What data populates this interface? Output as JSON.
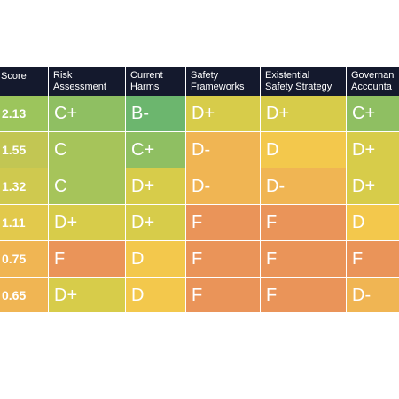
{
  "colors": {
    "header_bg": "#14192d",
    "grade_b_minus": "#6cb66e",
    "grade_c_plus": "#8fbf62",
    "grade_c": "#a6c45a",
    "grade_d_plus": "#d7cc4a",
    "grade_d": "#f3c84c",
    "grade_d_minus": "#f0b553",
    "grade_f": "#ea9459",
    "score_high": "#a6c45a",
    "score_mid": "#c0c855",
    "score_low": "#f0b553",
    "text": "#ffffff"
  },
  "table": {
    "headers": [
      [
        "Score"
      ],
      [
        "Risk",
        "Assessment"
      ],
      [
        "Current",
        "Harms"
      ],
      [
        "Safety",
        "Frameworks"
      ],
      [
        "Existential",
        "Safety Strategy"
      ],
      [
        "Governan",
        "Accounta"
      ]
    ],
    "rows": [
      {
        "score": "2.13",
        "score_color": "#9cc55c",
        "grades": [
          {
            "g": "C+",
            "color": "#8fbf62"
          },
          {
            "g": "B-",
            "color": "#6cb66e"
          },
          {
            "g": "D+",
            "color": "#d7cc4a"
          },
          {
            "g": "D+",
            "color": "#d7cc4a"
          },
          {
            "g": "C+",
            "color": "#8fbf62"
          }
        ]
      },
      {
        "score": "1.55",
        "score_color": "#c2c653",
        "grades": [
          {
            "g": "C",
            "color": "#a6c45a"
          },
          {
            "g": "C+",
            "color": "#8fbf62"
          },
          {
            "g": "D-",
            "color": "#f0b553"
          },
          {
            "g": "D",
            "color": "#f3c84c"
          },
          {
            "g": "D+",
            "color": "#d7cc4a"
          }
        ]
      },
      {
        "score": "1.32",
        "score_color": "#cfc94f",
        "grades": [
          {
            "g": "C",
            "color": "#a6c45a"
          },
          {
            "g": "D+",
            "color": "#d7cc4a"
          },
          {
            "g": "D-",
            "color": "#f0b553"
          },
          {
            "g": "D-",
            "color": "#f0b553"
          },
          {
            "g": "D+",
            "color": "#d7cc4a"
          }
        ]
      },
      {
        "score": "1.11",
        "score_color": "#e2c94c",
        "grades": [
          {
            "g": "D+",
            "color": "#d7cc4a"
          },
          {
            "g": "D+",
            "color": "#d7cc4a"
          },
          {
            "g": "F",
            "color": "#ea9459"
          },
          {
            "g": "F",
            "color": "#ea9459"
          },
          {
            "g": "D",
            "color": "#f3c84c"
          }
        ]
      },
      {
        "score": "0.75",
        "score_color": "#f0b553",
        "grades": [
          {
            "g": "F",
            "color": "#ea9459"
          },
          {
            "g": "D",
            "color": "#f3c84c"
          },
          {
            "g": "F",
            "color": "#ea9459"
          },
          {
            "g": "F",
            "color": "#ea9459"
          },
          {
            "g": "F",
            "color": "#ea9459"
          }
        ]
      },
      {
        "score": "0.65",
        "score_color": "#f0b553",
        "grades": [
          {
            "g": "D+",
            "color": "#d7cc4a"
          },
          {
            "g": "D",
            "color": "#f3c84c"
          },
          {
            "g": "F",
            "color": "#ea9459"
          },
          {
            "g": "F",
            "color": "#ea9459"
          },
          {
            "g": "D-",
            "color": "#f0b553"
          }
        ]
      }
    ]
  }
}
